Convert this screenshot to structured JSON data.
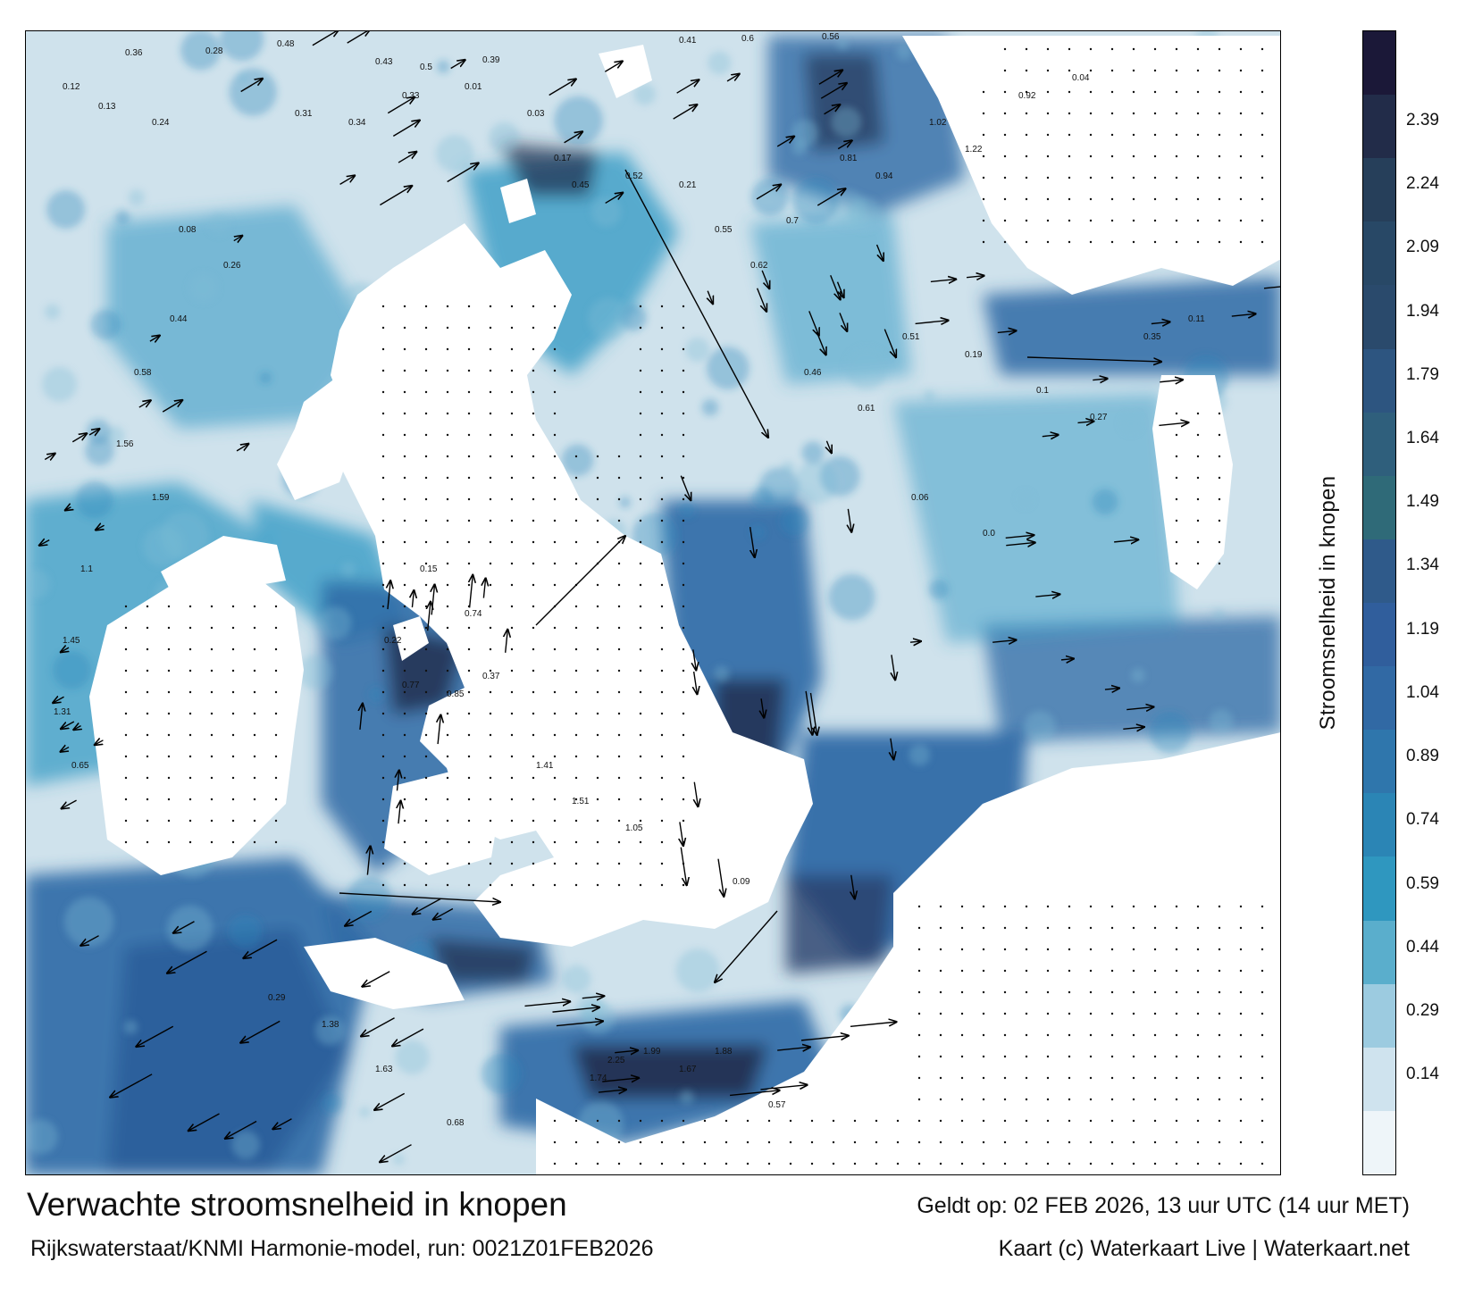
{
  "map": {
    "title": "Verwachte stroomsnelheid in knopen",
    "model_run": "Rijkswaterstaat/KNMI Harmonie-model, run: 0021Z01FEB2026",
    "valid_time": "Geldt op: 02 FEB 2026, 13 uur UTC (14 uur MET)",
    "credit": "Kaart (c) Waterkaart Live | Waterkaart.net"
  },
  "legend": {
    "label": "Stroomsnelheid in knopen",
    "ticks": [
      "0.14",
      "0.29",
      "0.44",
      "0.59",
      "0.74",
      "0.89",
      "1.04",
      "1.19",
      "1.34",
      "1.49",
      "1.64",
      "1.79",
      "1.94",
      "2.09",
      "2.24",
      "2.39"
    ],
    "colors": [
      "#eef5f9",
      "#cfe3ee",
      "#9ccbe0",
      "#5aaecc",
      "#2f97bf",
      "#2b85b5",
      "#2f76ac",
      "#3169a4",
      "#305e9c",
      "#2f5a8a",
      "#2f6a78",
      "#2f5f7c",
      "#2d5580",
      "#2a4a6c",
      "#284866",
      "#263f5a",
      "#222c49",
      "#1b1838"
    ]
  },
  "layers": {
    "land_color": "#ffffff",
    "sea_light": "#cfe2ec",
    "sea_mid": "#3a9cc6",
    "sea_dark": "#2f6aa6",
    "sea_deepest": "#1f2a4a"
  },
  "value_labels": [
    {
      "t": "0.36"
    },
    {
      "t": "0.28"
    },
    {
      "t": "0.48"
    },
    {
      "t": "0.43"
    },
    {
      "t": "0.5"
    },
    {
      "t": "0.39"
    },
    {
      "t": "0.41"
    },
    {
      "t": "0.6"
    },
    {
      "t": "0.56"
    },
    {
      "t": "0.12"
    },
    {
      "t": "0.13"
    },
    {
      "t": "0.24"
    },
    {
      "t": "0.31"
    },
    {
      "t": "0.34"
    },
    {
      "t": "0.33"
    },
    {
      "t": "0.01"
    },
    {
      "t": "0.03"
    },
    {
      "t": "0.17"
    },
    {
      "t": "0.45"
    },
    {
      "t": "0.52"
    },
    {
      "t": "0.21"
    },
    {
      "t": "0.55"
    },
    {
      "t": "0.62"
    },
    {
      "t": "0.7"
    },
    {
      "t": "0.81"
    },
    {
      "t": "0.94"
    },
    {
      "t": "1.02"
    },
    {
      "t": "1.22"
    },
    {
      "t": "0.92"
    },
    {
      "t": "0.04"
    },
    {
      "t": "0.08"
    },
    {
      "t": "0.26"
    },
    {
      "t": "0.44"
    },
    {
      "t": "0.58"
    },
    {
      "t": "1.56"
    },
    {
      "t": "1.59"
    },
    {
      "t": "1.1"
    },
    {
      "t": "1.45"
    },
    {
      "t": "1.31"
    },
    {
      "t": "0.65"
    },
    {
      "t": "0.77"
    },
    {
      "t": "0.85"
    },
    {
      "t": "0.37"
    },
    {
      "t": "0.22"
    },
    {
      "t": "0.15"
    },
    {
      "t": "0.74"
    },
    {
      "t": "1.41"
    },
    {
      "t": "1.51"
    },
    {
      "t": "1.05"
    },
    {
      "t": "0.09"
    },
    {
      "t": "2.25"
    },
    {
      "t": "1.99"
    },
    {
      "t": "1.67"
    },
    {
      "t": "1.88"
    },
    {
      "t": "1.74"
    },
    {
      "t": "0.57"
    },
    {
      "t": "0.68"
    },
    {
      "t": "1.63"
    },
    {
      "t": "1.38"
    },
    {
      "t": "0.29"
    },
    {
      "t": "0.46"
    },
    {
      "t": "0.61"
    },
    {
      "t": "0.51"
    },
    {
      "t": "0.19"
    },
    {
      "t": "0.1"
    },
    {
      "t": "0.27"
    },
    {
      "t": "0.35"
    },
    {
      "t": "0.11"
    },
    {
      "t": "0.06"
    },
    {
      "t": "0.0"
    }
  ]
}
